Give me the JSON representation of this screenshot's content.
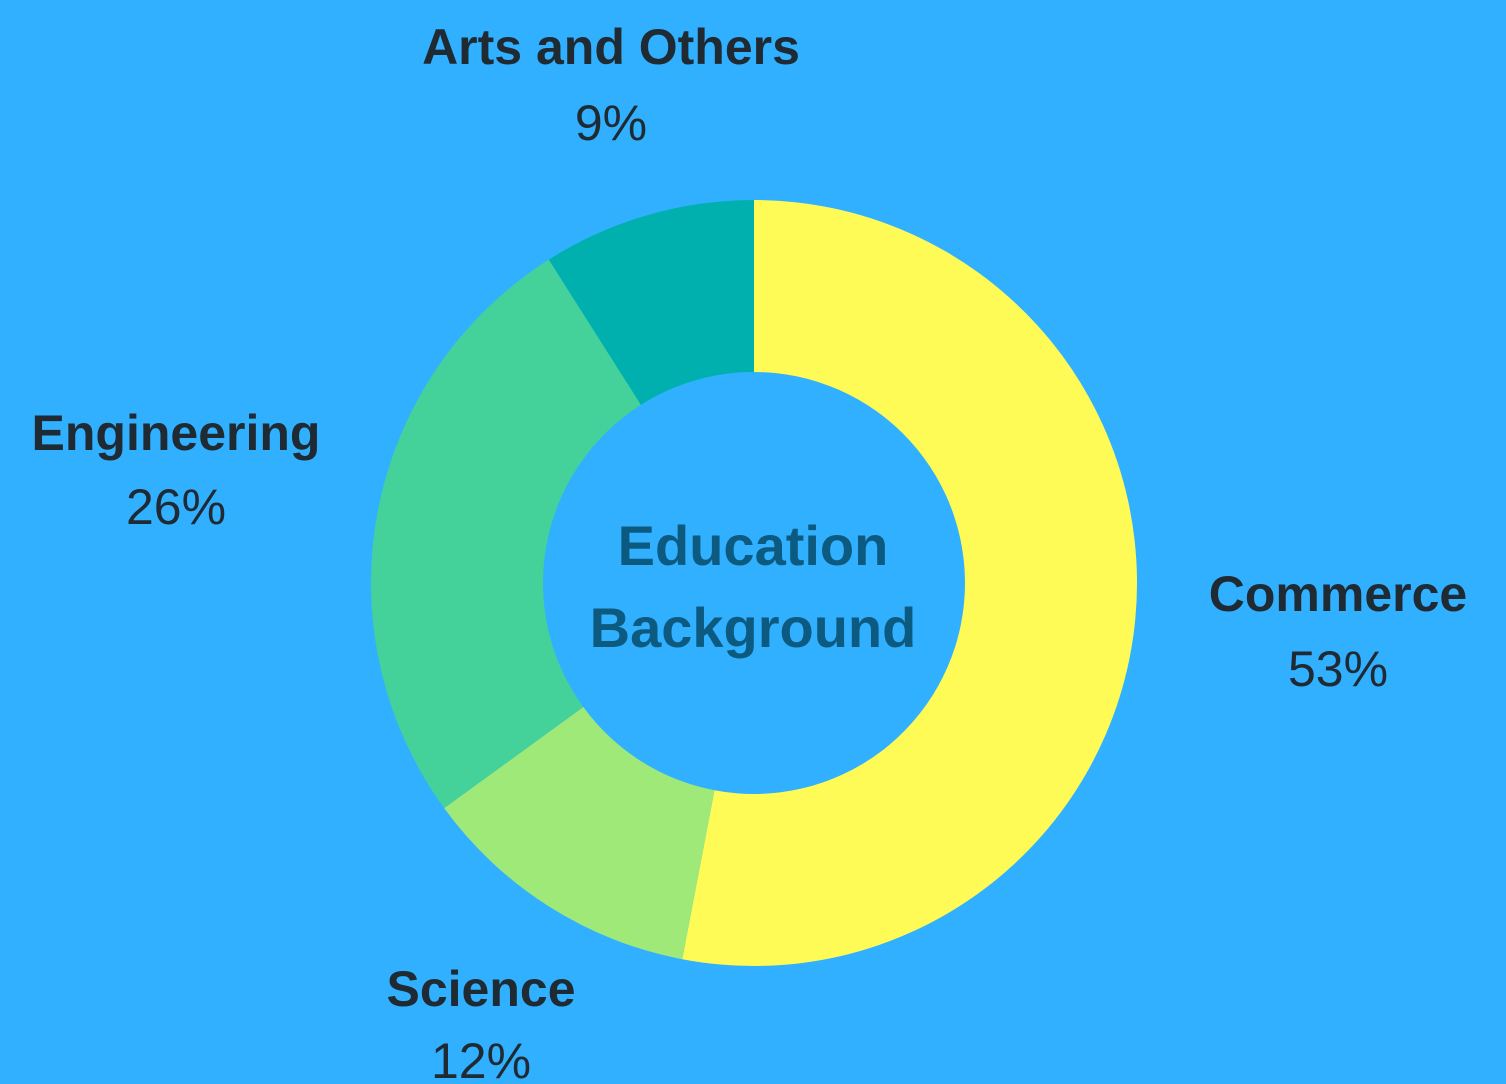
{
  "chart_data": {
    "type": "pie",
    "title": "Education Background",
    "title_lines": [
      "Education",
      "Background"
    ],
    "slices": [
      {
        "label": "Commerce",
        "value": 53,
        "value_label": "53%",
        "color": "#fffb56"
      },
      {
        "label": "Science",
        "value": 12,
        "value_label": "12%",
        "color": "#9fe978"
      },
      {
        "label": "Engineering",
        "value": 26,
        "value_label": "26%",
        "color": "#45d19a"
      },
      {
        "label": "Arts and Others",
        "value": 9,
        "value_label": "9%",
        "color": "#00b0ae"
      }
    ],
    "background": "#31b0ff",
    "center_text_color": "#0d5a80"
  }
}
